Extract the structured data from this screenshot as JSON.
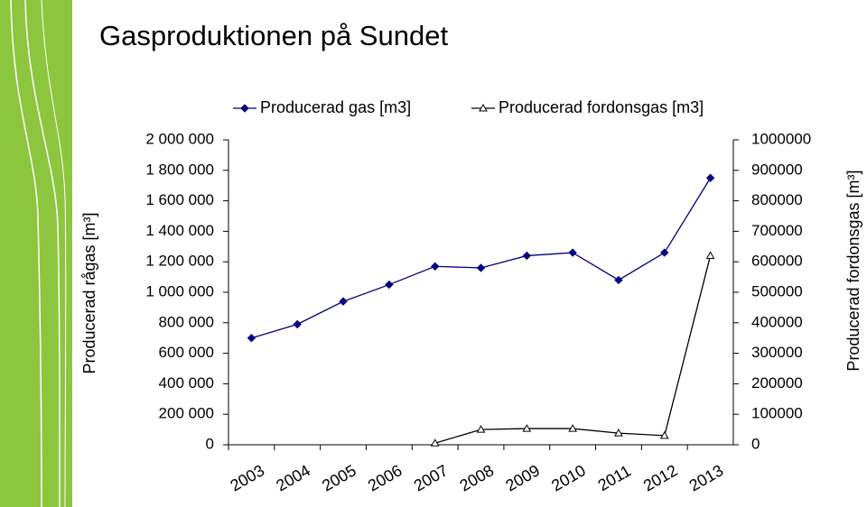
{
  "chart_data": {
    "type": "line",
    "title": "Gasproduktionen på Sundet",
    "y_label": "Producerad rågas [m³]",
    "y2_label": "Producerad fordonsgas [m³]",
    "categories": [
      "2003",
      "2004",
      "2005",
      "2006",
      "2007",
      "2008",
      "2009",
      "2010",
      "2011",
      "2012",
      "2013"
    ],
    "series": [
      {
        "name": "Producerad gas [m3]",
        "color": "#000080",
        "marker": "diamond",
        "values": [
          700000,
          790000,
          940000,
          1050000,
          1170000,
          1160000,
          1240000,
          1260000,
          1080000,
          1260000,
          1750000
        ]
      },
      {
        "name": "Producerad fordonsgas [m3]",
        "color": "#000000",
        "marker": "triangle",
        "axis": "y2",
        "values": [
          null,
          null,
          null,
          null,
          5000,
          50000,
          53000,
          53000,
          38000,
          30000,
          620000
        ]
      }
    ],
    "ylim": [
      0,
      2000000
    ],
    "yticks": [
      {
        "value": 0,
        "label": "0"
      },
      {
        "value": 200000,
        "label": "200 000"
      },
      {
        "value": 400000,
        "label": "400 000"
      },
      {
        "value": 600000,
        "label": "600 000"
      },
      {
        "value": 800000,
        "label": "800 000"
      },
      {
        "value": 1000000,
        "label": "1 000 000"
      },
      {
        "value": 1200000,
        "label": "1 200 000"
      },
      {
        "value": 1400000,
        "label": "1 400 000"
      },
      {
        "value": 1600000,
        "label": "1 600 000"
      },
      {
        "value": 1800000,
        "label": "1 800 000"
      },
      {
        "value": 2000000,
        "label": "2 000 000"
      }
    ],
    "y2lim": [
      0,
      1000000
    ],
    "y2ticks": [
      0,
      100000,
      200000,
      300000,
      400000,
      500000,
      600000,
      700000,
      800000,
      900000,
      1000000
    ],
    "legend": "top",
    "grid": false
  }
}
